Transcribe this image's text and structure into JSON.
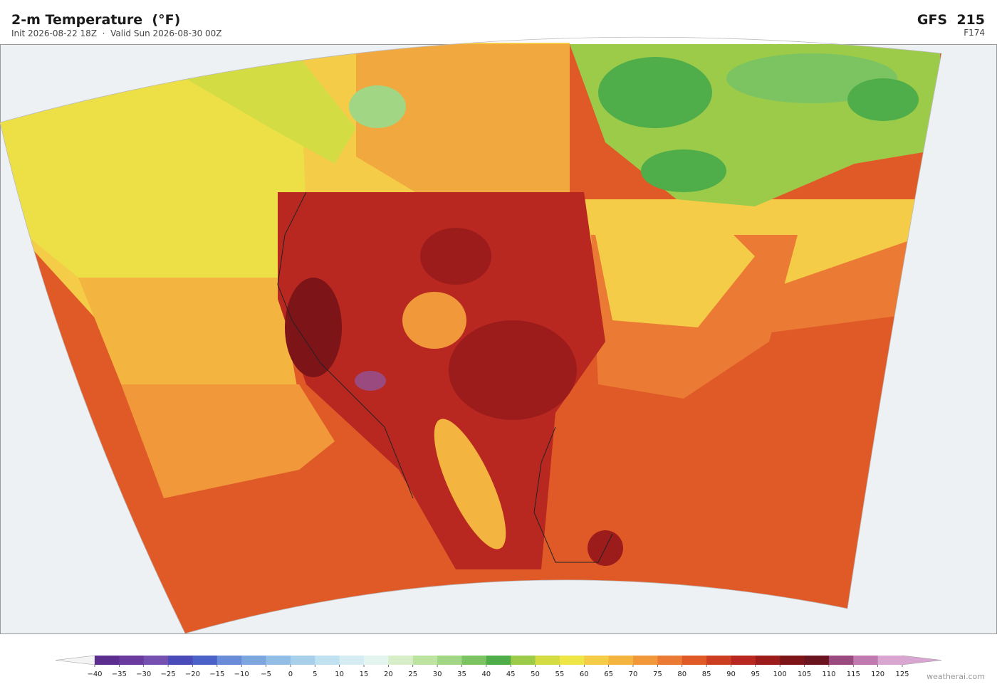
{
  "header": {
    "title": "2-m Temperature  (°F)",
    "subtitle": "Init 2026-08-22 18Z  ·  Valid Sun 2026-08-30 00Z",
    "model": "GFS  215",
    "forecast_hour": "F174"
  },
  "colorbar": {
    "ticks": [
      {
        "value": -40,
        "label": "−40"
      },
      {
        "value": -35,
        "label": "−35"
      },
      {
        "value": -30,
        "label": "−30"
      },
      {
        "value": -25,
        "label": "−25"
      },
      {
        "value": -20,
        "label": "−20"
      },
      {
        "value": -15,
        "label": "−15"
      },
      {
        "value": -10,
        "label": "−10"
      },
      {
        "value": -5,
        "label": "−5"
      },
      0,
      5,
      10,
      15,
      20,
      25,
      30,
      35,
      40,
      45,
      50,
      55,
      60,
      65,
      70,
      75,
      80,
      85,
      90,
      95,
      100,
      105,
      110,
      115,
      120,
      125
    ],
    "colors": [
      "#5b2d8e",
      "#6a3a9e",
      "#7550b0",
      "#4a4ab8",
      "#4a62c8",
      "#6a8cd8",
      "#7ea6de",
      "#92bde4",
      "#a8d0ea",
      "#c0e2f0",
      "#d4ecf2",
      "#e4f4ee",
      "#d8eec8",
      "#bde3a0",
      "#a0d684",
      "#7cc462",
      "#4fae4a",
      "#9ccb4a",
      "#d4dc44",
      "#eee646",
      "#f4cc48",
      "#f4b440",
      "#f0983a",
      "#ea7a34",
      "#e05a28",
      "#cc3e22",
      "#b82820",
      "#9c1c1c",
      "#7c1418",
      "#6a1420",
      "#9a4a7e",
      "#c07ab0",
      "#d8a6d0"
    ],
    "under_color": "#f4f4f4",
    "over_color": "#d8a6d0"
  },
  "watermark": "weatherai.com"
}
